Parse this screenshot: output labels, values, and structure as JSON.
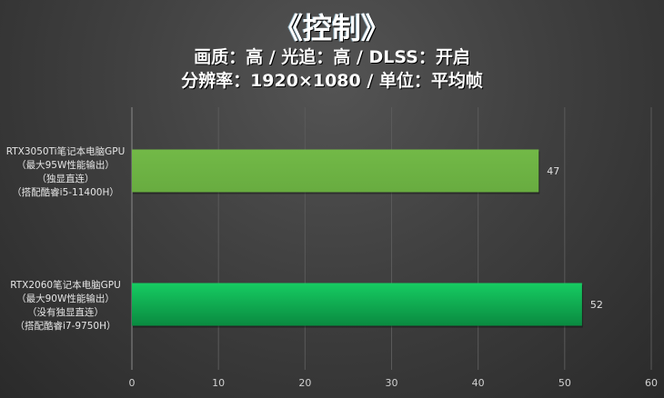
{
  "title": "《控制》",
  "subtitle_line1": "画质：高 / 光追：高 / DLSS：开启",
  "subtitle_line2": "分辨率：1920×1080 / 单位：平均帧",
  "chart_data": {
    "type": "bar",
    "orientation": "horizontal",
    "categories": [
      [
        "RTX3050Ti笔记本电脑GPU",
        "（最大95W性能输出）",
        "（独显直连）",
        "（搭配酷睿i5-11400H）"
      ],
      [
        "RTX2060笔记本电脑GPU",
        "（最大90W性能输出）",
        "（没有独显直连）",
        "（搭配酷睿i7-9750H）"
      ]
    ],
    "values": [
      47,
      52
    ],
    "colors": [
      "#6db443",
      "#14c45e"
    ],
    "xlim": [
      0,
      60
    ],
    "xticks": [
      0,
      10,
      20,
      30,
      40,
      50,
      60
    ],
    "grid": true,
    "data_labels": true
  }
}
